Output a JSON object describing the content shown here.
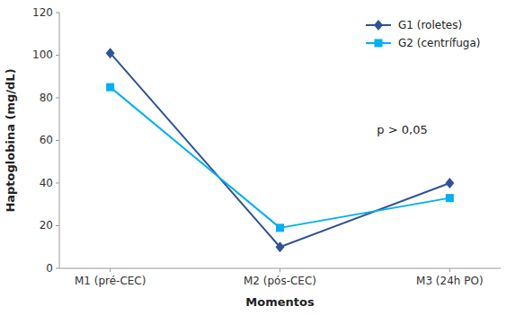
{
  "chart_data": {
    "type": "line",
    "categories": [
      "M1 (pré-CEC)",
      "M2 (pós-CEC)",
      "M3 (24h PO)"
    ],
    "series": [
      {
        "name": "G1 (roletes)",
        "color": "#2F5496",
        "marker": "diamond",
        "values": [
          101,
          10,
          40
        ]
      },
      {
        "name": "G2 (centrífuga)",
        "color": "#00B0F0",
        "marker": "square",
        "values": [
          85,
          19,
          33
        ]
      }
    ],
    "xlabel": "Momentos",
    "ylabel": "Haptoglobina (mg/dL)",
    "ylim": [
      0,
      120
    ],
    "yticks": [
      0,
      20,
      40,
      60,
      80,
      100,
      120
    ],
    "annotation": "p > 0,05",
    "legend": "upper right",
    "grid": false
  }
}
